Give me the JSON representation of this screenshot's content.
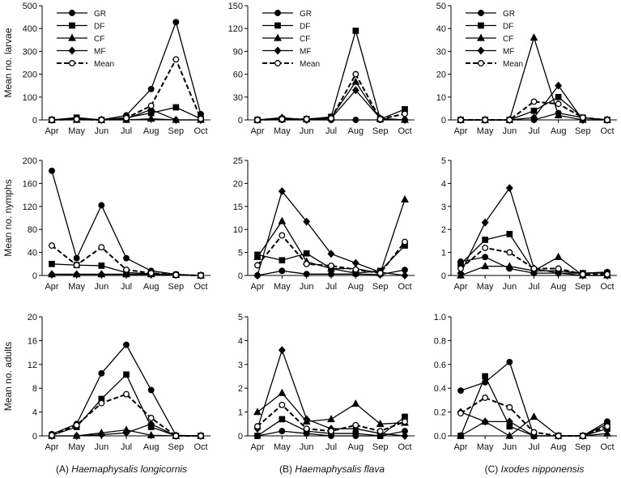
{
  "months": [
    "Apr",
    "May",
    "Jun",
    "Jul",
    "Aug",
    "Sep",
    "Oct"
  ],
  "legend_series": [
    "GR",
    "DF",
    "CF",
    "MF",
    "Mean"
  ],
  "styles": {
    "GR": {
      "marker": "circle",
      "fill": "#000000",
      "dash": ""
    },
    "DF": {
      "marker": "square",
      "fill": "#000000",
      "dash": ""
    },
    "CF": {
      "marker": "triangle",
      "fill": "#000000",
      "dash": ""
    },
    "MF": {
      "marker": "diamond",
      "fill": "#000000",
      "dash": ""
    },
    "Mean": {
      "marker": "circle",
      "fill": "#ffffff",
      "dash": "6,3"
    }
  },
  "captions": [
    {
      "prefix": "(A) ",
      "species": "Haemaphysalis longicornis"
    },
    {
      "prefix": "(B) ",
      "species": "Haemaphysalis flava"
    },
    {
      "prefix": "(C) ",
      "species": "Ixodes nipponensis"
    }
  ],
  "row_labels": [
    "Mean no. larvae",
    "Mean no. nymphs",
    "Mean no. adults"
  ],
  "chart_data": [
    {
      "type": "line",
      "row": 0,
      "col": 0,
      "ylabel": "Mean no. larvae",
      "ylim": [
        0,
        500
      ],
      "yticks": [
        "0",
        "100",
        "200",
        "300",
        "400",
        "500"
      ],
      "legend": true,
      "series": [
        {
          "name": "GR",
          "values": [
            0,
            5,
            0,
            20,
            135,
            428,
            25
          ]
        },
        {
          "name": "DF",
          "values": [
            0,
            10,
            0,
            10,
            30,
            55,
            5
          ]
        },
        {
          "name": "CF",
          "values": [
            0,
            0,
            0,
            0,
            5,
            0,
            0
          ]
        },
        {
          "name": "MF",
          "values": [
            0,
            3,
            0,
            5,
            45,
            0,
            0
          ]
        },
        {
          "name": "Mean",
          "values": [
            0,
            3,
            0,
            8,
            62,
            265,
            5
          ]
        }
      ]
    },
    {
      "type": "line",
      "row": 0,
      "col": 1,
      "ylabel": "",
      "ylim": [
        0,
        150
      ],
      "yticks": [
        "0",
        "30",
        "60",
        "90",
        "120",
        "150"
      ],
      "legend": true,
      "series": [
        {
          "name": "GR",
          "values": [
            0,
            0,
            0,
            0,
            0,
            0,
            0
          ]
        },
        {
          "name": "DF",
          "values": [
            0,
            1,
            1,
            4,
            117,
            1,
            14
          ]
        },
        {
          "name": "CF",
          "values": [
            0,
            1,
            1,
            3,
            50,
            1,
            0
          ]
        },
        {
          "name": "MF",
          "values": [
            0,
            3,
            0,
            2,
            39,
            2,
            0
          ]
        },
        {
          "name": "Mean",
          "values": [
            0,
            1,
            1,
            2,
            60,
            1,
            8
          ]
        }
      ]
    },
    {
      "type": "line",
      "row": 0,
      "col": 2,
      "ylabel": "",
      "ylim": [
        0,
        50
      ],
      "yticks": [
        "0",
        "10",
        "20",
        "30",
        "40",
        "50"
      ],
      "legend": true,
      "series": [
        {
          "name": "GR",
          "values": [
            0,
            0,
            0,
            0,
            3,
            1,
            0
          ]
        },
        {
          "name": "DF",
          "values": [
            0,
            0,
            0,
            4,
            10,
            1,
            0
          ]
        },
        {
          "name": "CF",
          "values": [
            0,
            0,
            0,
            36,
            2,
            0,
            0
          ]
        },
        {
          "name": "MF",
          "values": [
            0,
            0,
            0,
            1,
            15,
            0,
            0
          ]
        },
        {
          "name": "Mean",
          "values": [
            0,
            0,
            0,
            8,
            7,
            1,
            0
          ]
        }
      ]
    },
    {
      "type": "line",
      "row": 1,
      "col": 0,
      "ylabel": "Mean no. nymphs",
      "ylim": [
        0,
        200
      ],
      "yticks": [
        "0",
        "40",
        "80",
        "120",
        "160",
        "200"
      ],
      "legend": false,
      "series": [
        {
          "name": "GR",
          "values": [
            182,
            30,
            122,
            30,
            8,
            2,
            0
          ]
        },
        {
          "name": "DF",
          "values": [
            20,
            18,
            17,
            5,
            3,
            1,
            0
          ]
        },
        {
          "name": "CF",
          "values": [
            2,
            2,
            2,
            2,
            2,
            1,
            0
          ]
        },
        {
          "name": "MF",
          "values": [
            2,
            2,
            2,
            2,
            2,
            1,
            0
          ]
        },
        {
          "name": "Mean",
          "values": [
            52,
            18,
            49,
            10,
            4,
            1,
            0
          ]
        }
      ]
    },
    {
      "type": "line",
      "row": 1,
      "col": 1,
      "ylabel": "",
      "ylim": [
        0,
        25
      ],
      "yticks": [
        "0",
        "5",
        "10",
        "15",
        "20",
        "25"
      ],
      "legend": false,
      "series": [
        {
          "name": "GR",
          "values": [
            0,
            1,
            0.3,
            0.3,
            0.3,
            0.2,
            1.2
          ]
        },
        {
          "name": "DF",
          "values": [
            4.5,
            3.3,
            4.8,
            1.5,
            0.5,
            1,
            6.5
          ]
        },
        {
          "name": "CF",
          "values": [
            4,
            11.8,
            3,
            1.5,
            1.5,
            0.5,
            16.5
          ]
        },
        {
          "name": "MF",
          "values": [
            0,
            18.3,
            11.7,
            4.7,
            2.7,
            0.7,
            0
          ]
        },
        {
          "name": "Mean",
          "values": [
            2.2,
            8.7,
            2.5,
            2.1,
            1.3,
            0.5,
            7.3
          ]
        }
      ]
    },
    {
      "type": "line",
      "row": 1,
      "col": 2,
      "ylabel": "",
      "ylim": [
        0,
        5
      ],
      "yticks": [
        "0",
        "1",
        "2",
        "3",
        "4",
        "5"
      ],
      "legend": false,
      "series": [
        {
          "name": "GR",
          "values": [
            0.6,
            0.8,
            0.3,
            0.1,
            0.1,
            0.1,
            0.15
          ]
        },
        {
          "name": "DF",
          "values": [
            0.5,
            1.55,
            1.8,
            0.2,
            0.2,
            0.1,
            0.1
          ]
        },
        {
          "name": "CF",
          "values": [
            0,
            0.4,
            0.4,
            0.2,
            0.8,
            0,
            0
          ]
        },
        {
          "name": "MF",
          "values": [
            0.1,
            2.3,
            3.8,
            0.3,
            0.1,
            0,
            0
          ]
        },
        {
          "name": "Mean",
          "values": [
            0.3,
            1.2,
            1,
            0.3,
            0.3,
            0.05,
            0.05
          ]
        }
      ]
    },
    {
      "type": "line",
      "row": 2,
      "col": 0,
      "ylabel": "Mean no. adults",
      "ylim": [
        0,
        20
      ],
      "yticks": [
        "0",
        "4",
        "8",
        "12",
        "16",
        "20"
      ],
      "legend": false,
      "series": [
        {
          "name": "GR",
          "values": [
            0.3,
            2,
            10.5,
            15.3,
            7.7,
            0.1,
            0
          ]
        },
        {
          "name": "DF",
          "values": [
            0.1,
            1.5,
            6.2,
            10.3,
            1.5,
            0,
            0
          ]
        },
        {
          "name": "CF",
          "values": [
            0,
            0,
            0.5,
            1,
            0.1,
            0,
            0
          ]
        },
        {
          "name": "MF",
          "values": [
            0,
            0,
            0.2,
            0.5,
            2,
            0,
            0
          ]
        },
        {
          "name": "Mean",
          "values": [
            0.1,
            1.8,
            5.5,
            7,
            3,
            0,
            0
          ]
        }
      ]
    },
    {
      "type": "line",
      "row": 2,
      "col": 1,
      "ylabel": "",
      "ylim": [
        0,
        5
      ],
      "yticks": [
        "0",
        "1",
        "2",
        "3",
        "4",
        "5"
      ],
      "legend": false,
      "series": [
        {
          "name": "GR",
          "values": [
            0,
            0.2,
            0.1,
            0,
            0,
            0,
            0.2
          ]
        },
        {
          "name": "DF",
          "values": [
            0,
            0.7,
            0.2,
            0.1,
            0.1,
            0,
            0.8
          ]
        },
        {
          "name": "CF",
          "values": [
            1,
            1.8,
            0.6,
            0.7,
            1.35,
            0.5,
            0.55
          ]
        },
        {
          "name": "MF",
          "values": [
            0.3,
            3.6,
            0.7,
            0.3,
            0.3,
            0.1,
            0
          ]
        },
        {
          "name": "Mean",
          "values": [
            0.4,
            1.3,
            0.3,
            0.2,
            0.45,
            0.2,
            0.6
          ]
        }
      ]
    },
    {
      "type": "line",
      "row": 2,
      "col": 2,
      "ylabel": "",
      "ylim": [
        0,
        1.0
      ],
      "yticks": [
        "0.0",
        "0.2",
        "0.4",
        "0.6",
        "0.8",
        "1.0"
      ],
      "legend": false,
      "series": [
        {
          "name": "GR",
          "values": [
            0.38,
            0.45,
            0.62,
            0,
            0,
            0,
            0.12
          ]
        },
        {
          "name": "DF",
          "values": [
            0,
            0.5,
            0.08,
            0,
            0,
            0,
            0.06
          ]
        },
        {
          "name": "CF",
          "values": [
            0,
            0.12,
            0,
            0.16,
            0,
            0,
            0.02
          ]
        },
        {
          "name": "MF",
          "values": [
            0.2,
            0.12,
            0.12,
            0,
            0,
            0,
            0.1
          ]
        },
        {
          "name": "Mean",
          "values": [
            0.19,
            0.32,
            0.24,
            0.03,
            0,
            0,
            0.08
          ]
        }
      ]
    }
  ]
}
